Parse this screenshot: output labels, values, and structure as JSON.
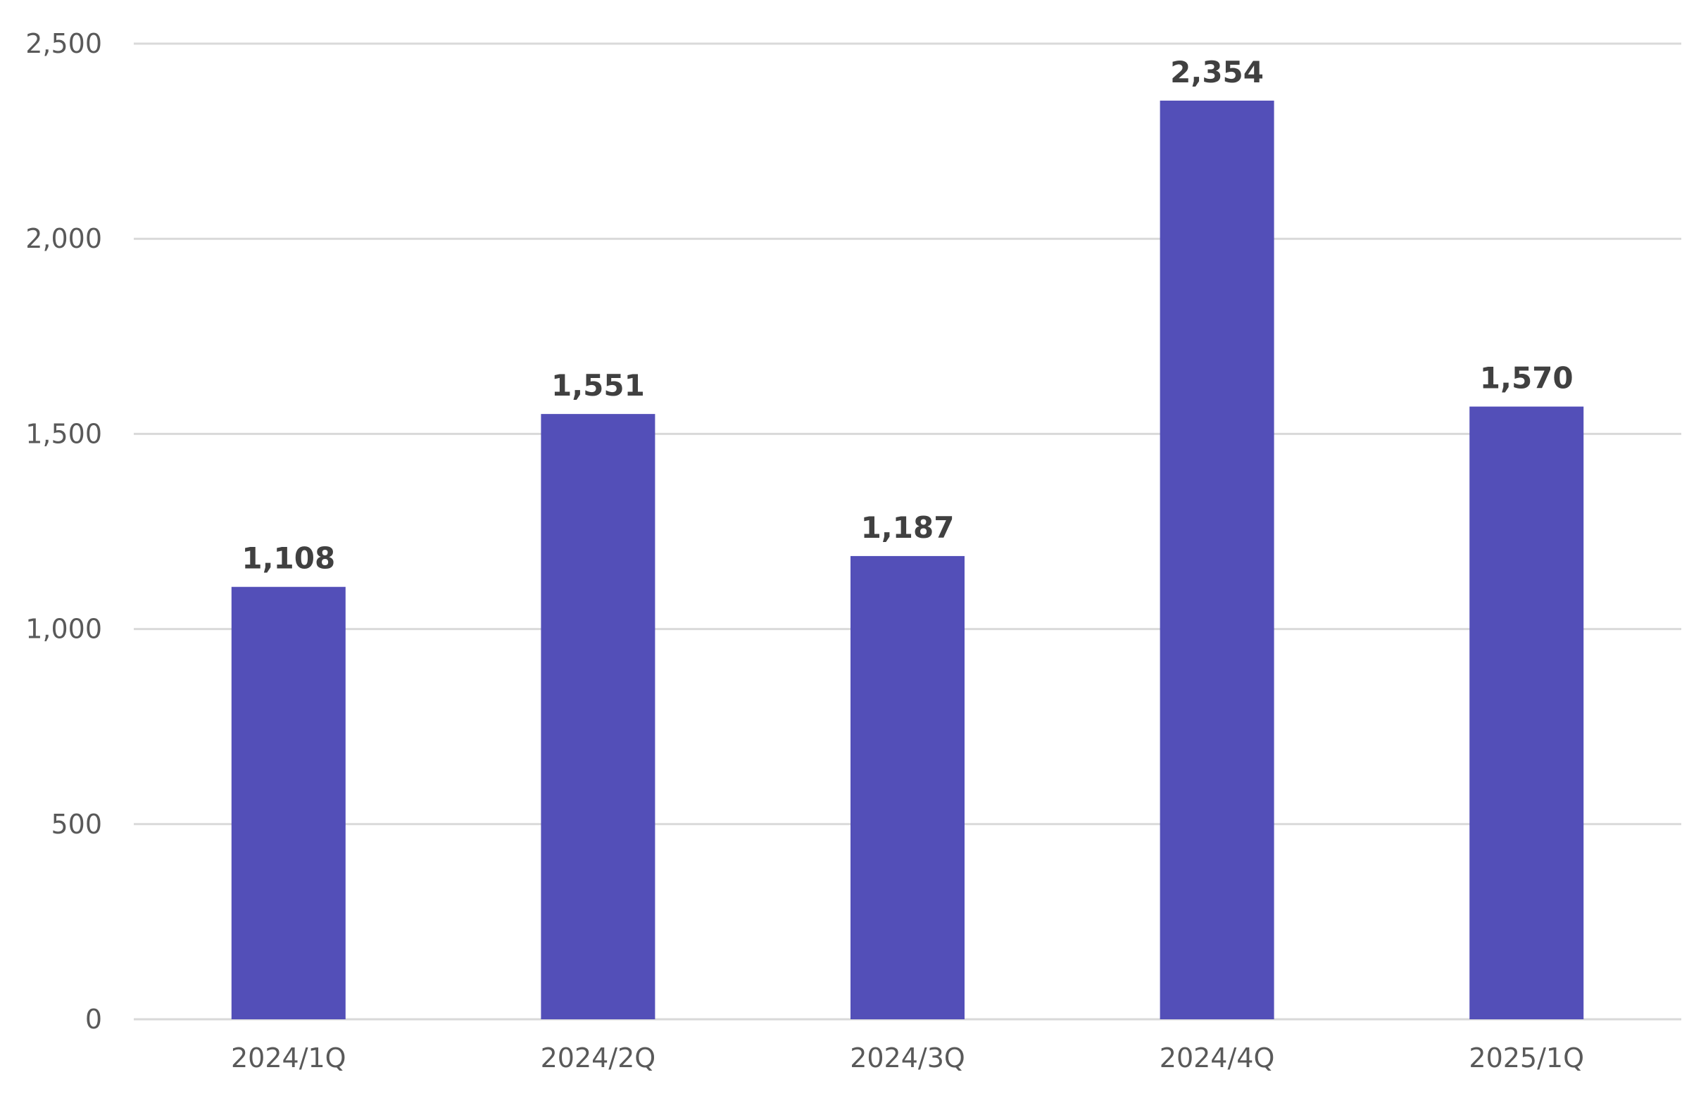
{
  "chart_data": {
    "type": "bar",
    "title": "",
    "xlabel": "",
    "ylabel": "",
    "categories": [
      "2024/1Q",
      "2024/2Q",
      "2024/3Q",
      "2024/4Q",
      "2025/1Q"
    ],
    "values": [
      1108,
      1551,
      1187,
      2354,
      1570
    ],
    "value_labels": [
      "1,108",
      "1,551",
      "1,187",
      "2,354",
      "1,570"
    ],
    "ylim": [
      0,
      2500
    ],
    "yticks": [
      0,
      500,
      1000,
      1500,
      2000,
      2500
    ],
    "ytick_labels": [
      "0",
      "500",
      "1,000",
      "1,500",
      "2,000",
      "2,500"
    ],
    "grid": true,
    "legend": "none",
    "bar_color": "#534FB8"
  }
}
